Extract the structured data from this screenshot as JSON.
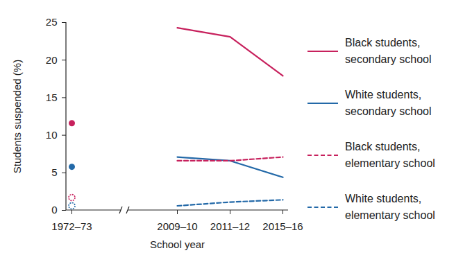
{
  "chart_data": {
    "type": "line",
    "xlabel": "School year",
    "ylabel": "Students suspended (%)",
    "categories": [
      "1972–73",
      null,
      "2009–10",
      "2011–12",
      "2015–16"
    ],
    "ylim": [
      0,
      25
    ],
    "yticks": [
      0,
      5,
      10,
      15,
      20,
      25
    ],
    "legend": "right",
    "series": [
      {
        "name": "Black students, secondary school",
        "color": "#c7215d",
        "line_style": "solid",
        "marker": "circle",
        "values": [
          11.6,
          null,
          24.3,
          23.1,
          17.9
        ]
      },
      {
        "name": "White students, secondary school",
        "color": "#2369a8",
        "line_style": "solid",
        "marker": "circle",
        "values": [
          5.8,
          null,
          7.1,
          6.6,
          4.4
        ]
      },
      {
        "name": "Black students, elementary school",
        "color": "#c7215d",
        "line_style": "dashed",
        "marker": "circle",
        "values": [
          1.7,
          null,
          6.6,
          6.6,
          7.1
        ]
      },
      {
        "name": "White students, elementary school",
        "color": "#2369a8",
        "line_style": "dashed",
        "marker": "circle",
        "values": [
          0.6,
          null,
          0.6,
          1.1,
          1.4
        ]
      }
    ]
  }
}
